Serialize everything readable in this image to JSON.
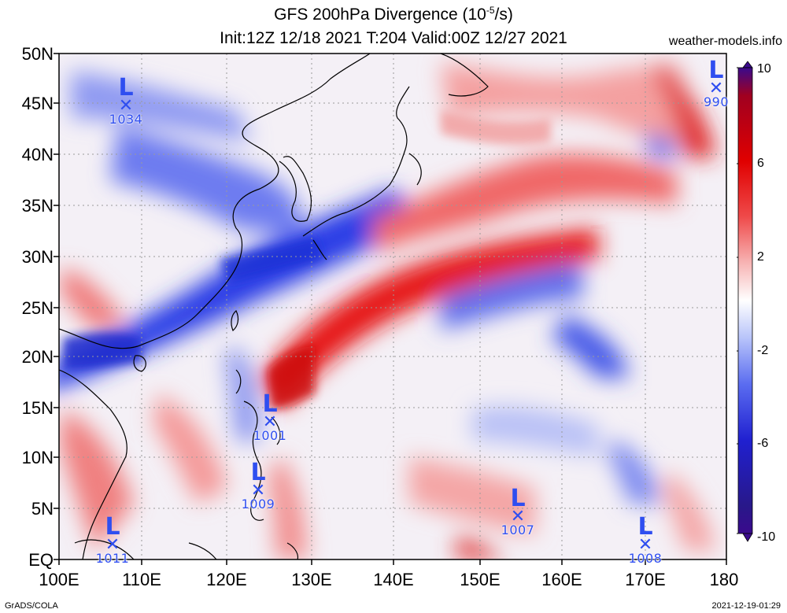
{
  "header": {
    "title_main": "GFS 200hPa Divergence (10",
    "title_exp": "-5",
    "title_unit": "/s)",
    "subtitle": "Init:12Z 12/18 2021 T:204 Valid:00Z 12/27 2021",
    "brand": "weather-models.info"
  },
  "footer": {
    "left": "GrADS/COLA",
    "right": "2021-12-19-01:29"
  },
  "axes": {
    "lat_labels": [
      "50N",
      "45N",
      "40N",
      "35N",
      "30N",
      "25N",
      "20N",
      "15N",
      "10N",
      "5N",
      "EQ"
    ],
    "lon_labels": [
      "100E",
      "110E",
      "120E",
      "130E",
      "140E",
      "150E",
      "160E",
      "170E",
      "180"
    ]
  },
  "colorbar": {
    "labels": [
      "10",
      "6",
      "2",
      "-2",
      "-6",
      "-10"
    ],
    "colors": [
      "#3a0a8c",
      "#2020d0",
      "#5a6cf0",
      "#b8c4fa",
      "#ffffff",
      "#f7b5b5",
      "#ef4a4a",
      "#e00000",
      "#a00020"
    ]
  },
  "lows": [
    {
      "label": "L",
      "pressure": "1034"
    },
    {
      "label": "L",
      "pressure": "990"
    },
    {
      "label": "L",
      "pressure": "1001"
    },
    {
      "label": "L",
      "pressure": "1009"
    },
    {
      "label": "L",
      "pressure": "1011"
    },
    {
      "label": "L",
      "pressure": "1007"
    },
    {
      "label": "L",
      "pressure": "1008"
    }
  ]
}
